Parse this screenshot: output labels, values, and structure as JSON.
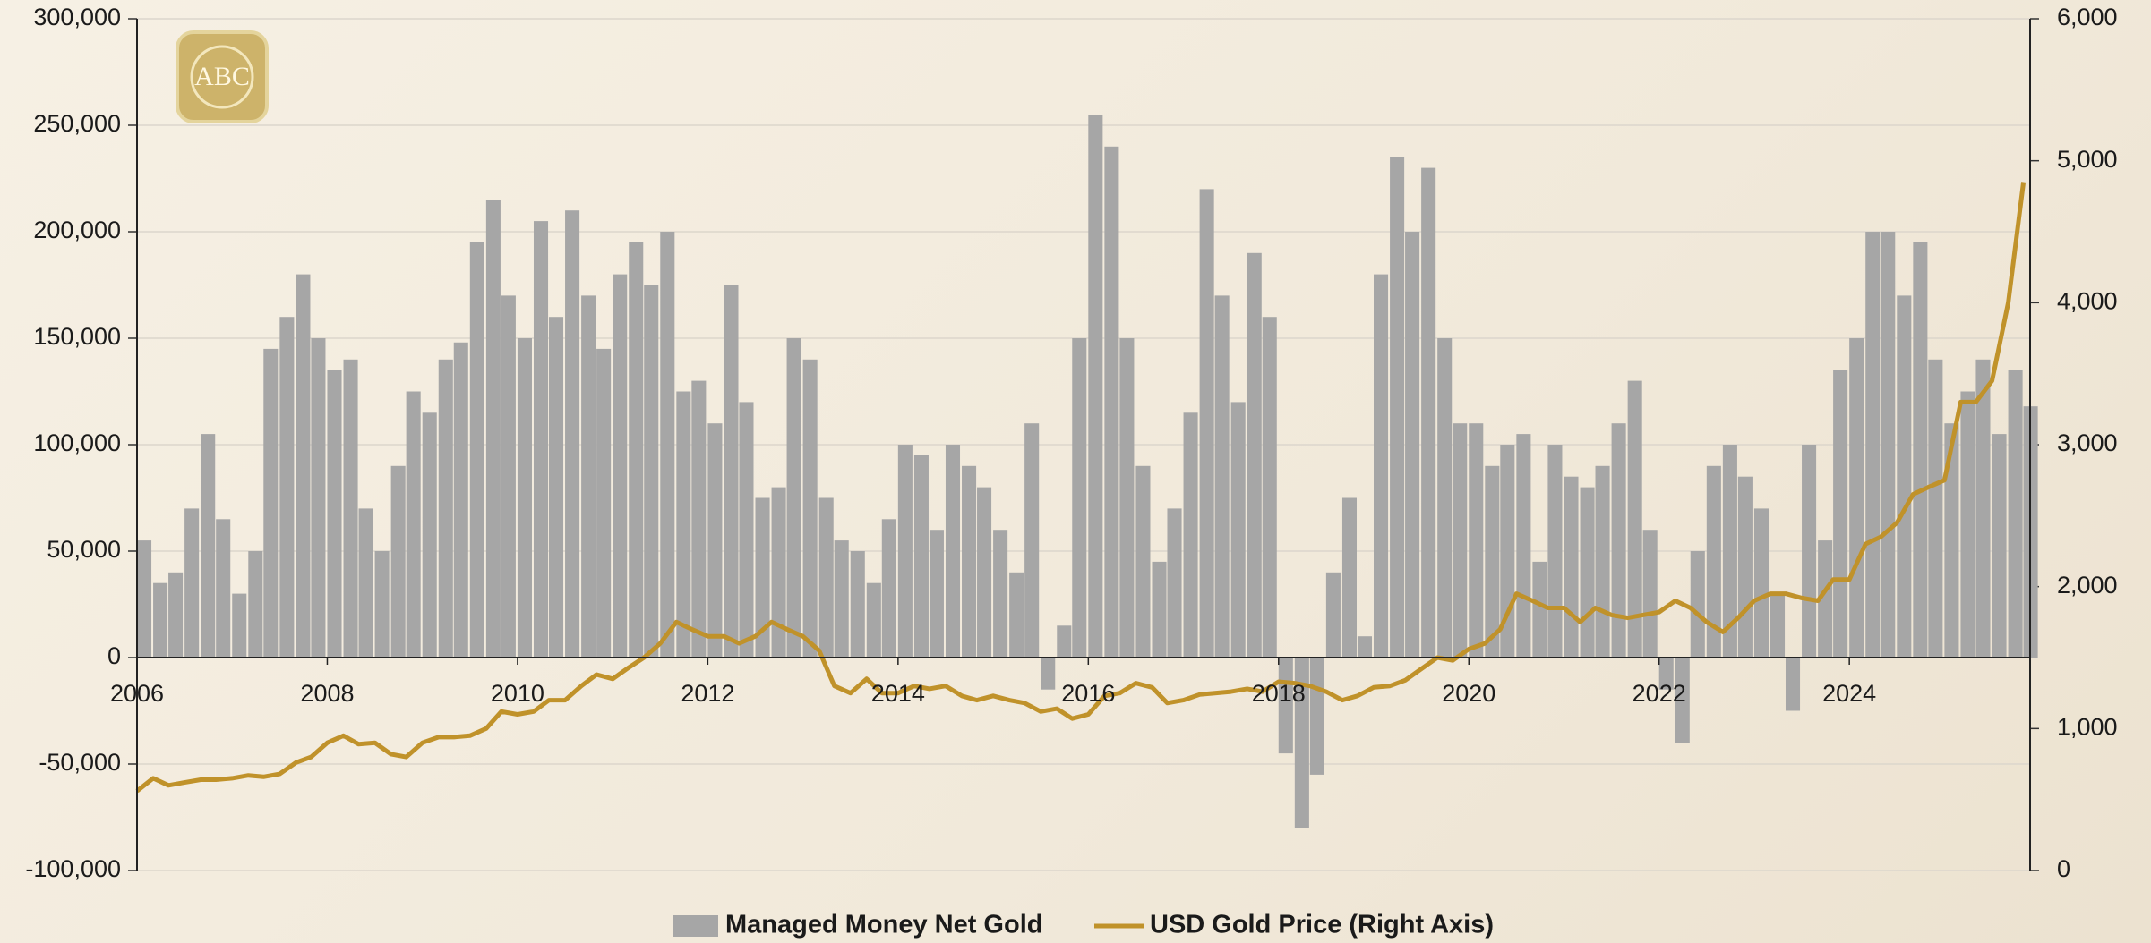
{
  "chart_data": {
    "type": "bar_line",
    "logo_text": "ABC",
    "x": [
      2006,
      2006.17,
      2006.33,
      2006.5,
      2006.67,
      2006.83,
      2007,
      2007.17,
      2007.33,
      2007.5,
      2007.67,
      2007.83,
      2008,
      2008.17,
      2008.33,
      2008.5,
      2008.67,
      2008.83,
      2009,
      2009.17,
      2009.33,
      2009.5,
      2009.67,
      2009.83,
      2010,
      2010.17,
      2010.33,
      2010.5,
      2010.67,
      2010.83,
      2011,
      2011.17,
      2011.33,
      2011.5,
      2011.67,
      2011.83,
      2012,
      2012.17,
      2012.33,
      2012.5,
      2012.67,
      2012.83,
      2013,
      2013.17,
      2013.33,
      2013.5,
      2013.67,
      2013.83,
      2014,
      2014.17,
      2014.33,
      2014.5,
      2014.67,
      2014.83,
      2015,
      2015.17,
      2015.33,
      2015.5,
      2015.67,
      2015.83,
      2016,
      2016.17,
      2016.33,
      2016.5,
      2016.67,
      2016.83,
      2017,
      2017.17,
      2017.33,
      2017.5,
      2017.67,
      2017.83,
      2018,
      2018.17,
      2018.33,
      2018.5,
      2018.67,
      2018.83,
      2019,
      2019.17,
      2019.33,
      2019.5,
      2019.67,
      2019.83,
      2020,
      2020.17,
      2020.33,
      2020.5,
      2020.67,
      2020.83,
      2021,
      2021.17,
      2021.33,
      2021.5,
      2021.67,
      2021.83,
      2022,
      2022.17,
      2022.33,
      2022.5,
      2022.67,
      2022.83,
      2023,
      2023.17,
      2023.33,
      2023.5,
      2023.67,
      2023.83,
      2024,
      2024.17,
      2024.33,
      2024.5,
      2024.67,
      2024.83,
      2025,
      2025.17,
      2025.33,
      2025.5,
      2025.67,
      2025.83
    ],
    "series": [
      {
        "name": "Managed Money Net Gold",
        "color": "#a6a6a6",
        "values": [
          55000,
          35000,
          40000,
          70000,
          105000,
          65000,
          30000,
          50000,
          145000,
          160000,
          180000,
          150000,
          135000,
          140000,
          70000,
          50000,
          90000,
          125000,
          115000,
          140000,
          148000,
          195000,
          215000,
          170000,
          150000,
          205000,
          160000,
          210000,
          170000,
          145000,
          180000,
          195000,
          175000,
          200000,
          125000,
          130000,
          110000,
          175000,
          120000,
          75000,
          80000,
          150000,
          140000,
          75000,
          55000,
          50000,
          35000,
          65000,
          100000,
          95000,
          60000,
          100000,
          90000,
          80000,
          60000,
          40000,
          110000,
          -15000,
          15000,
          150000,
          255000,
          240000,
          150000,
          90000,
          45000,
          70000,
          115000,
          220000,
          170000,
          120000,
          190000,
          160000,
          -45000,
          -80000,
          -55000,
          40000,
          75000,
          10000,
          180000,
          235000,
          200000,
          230000,
          150000,
          110000,
          110000,
          90000,
          100000,
          105000,
          45000,
          100000,
          85000,
          80000,
          90000,
          110000,
          130000,
          60000,
          -15000,
          -40000,
          50000,
          90000,
          100000,
          85000,
          70000,
          30000,
          -25000,
          100000,
          55000,
          135000,
          150000,
          200000,
          200000,
          170000,
          195000,
          140000,
          110000,
          125000,
          140000,
          105000,
          135000,
          118000
        ]
      },
      {
        "name": "USD Gold Price (Right Axis)",
        "color": "#c0922a",
        "axis": "y2",
        "values": [
          560,
          650,
          600,
          620,
          640,
          640,
          650,
          670,
          660,
          680,
          760,
          800,
          900,
          950,
          890,
          900,
          820,
          800,
          900,
          940,
          940,
          950,
          1000,
          1120,
          1100,
          1120,
          1200,
          1200,
          1300,
          1380,
          1350,
          1430,
          1500,
          1600,
          1750,
          1700,
          1650,
          1650,
          1600,
          1650,
          1750,
          1700,
          1650,
          1550,
          1300,
          1250,
          1350,
          1250,
          1250,
          1300,
          1280,
          1300,
          1230,
          1200,
          1230,
          1200,
          1180,
          1120,
          1140,
          1070,
          1100,
          1230,
          1250,
          1320,
          1290,
          1180,
          1200,
          1240,
          1250,
          1260,
          1280,
          1260,
          1330,
          1320,
          1300,
          1260,
          1200,
          1230,
          1290,
          1300,
          1340,
          1420,
          1500,
          1480,
          1560,
          1600,
          1700,
          1950,
          1900,
          1850,
          1850,
          1750,
          1850,
          1800,
          1780,
          1800,
          1820,
          1900,
          1850,
          1750,
          1680,
          1780,
          1900,
          1950,
          1950,
          1920,
          1900,
          2050,
          2050,
          2300,
          2350,
          2450,
          2650,
          2700,
          2750,
          3300,
          3300,
          3450,
          4000,
          4850
        ]
      }
    ],
    "xlim": [
      2006,
      2025.9
    ],
    "xticks": [
      2006,
      2008,
      2010,
      2012,
      2014,
      2016,
      2018,
      2020,
      2022,
      2024
    ],
    "ylim": [
      -100000,
      300000
    ],
    "yticks": [
      {
        "value": -100000,
        "label": "-100,000"
      },
      {
        "value": -50000,
        "label": "-50,000"
      },
      0,
      {
        "value": 50000,
        "label": "50,000"
      },
      {
        "value": 100000,
        "label": "100,000"
      },
      {
        "value": 150000,
        "label": "150,000"
      },
      {
        "value": 200000,
        "label": "200,000"
      },
      {
        "value": 250000,
        "label": "250,000"
      },
      {
        "value": 300000,
        "label": "300,000"
      }
    ],
    "y2lim": [
      0,
      6000
    ],
    "y2ticks": [
      0,
      {
        "value": 1000,
        "label": "1,000"
      },
      {
        "value": 2000,
        "label": "2,000"
      },
      {
        "value": 3000,
        "label": "3,000"
      },
      {
        "value": 4000,
        "label": "4,000"
      },
      {
        "value": 5000,
        "label": "5,000"
      },
      {
        "value": 6000,
        "label": "6,000"
      }
    ],
    "grid": true,
    "legend": "bottom"
  }
}
